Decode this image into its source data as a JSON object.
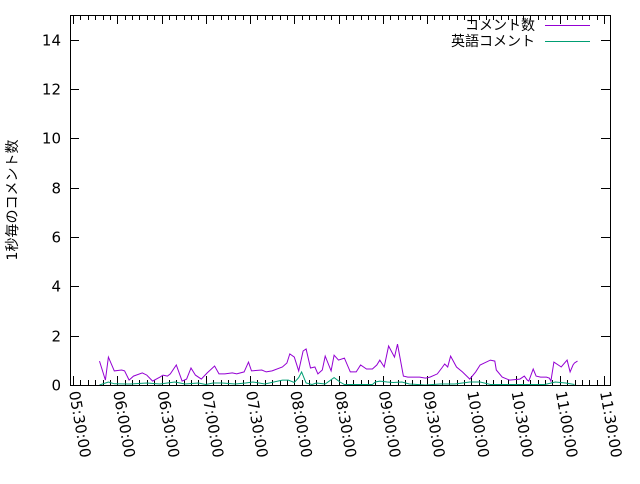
{
  "chart_data": {
    "type": "line",
    "title": "",
    "xlabel": "",
    "ylabel": "1秒毎のコメント数",
    "xlim": [
      "05:30:00",
      "11:30:00"
    ],
    "ylim": [
      0,
      15
    ],
    "x_ticks": [
      "05:30:00",
      "06:00:00",
      "06:30:00",
      "07:00:00",
      "07:30:00",
      "08:00:00",
      "08:30:00",
      "09:00:00",
      "09:30:00",
      "10:00:00",
      "10:30:00",
      "11:00:00",
      "11:30:00"
    ],
    "y_ticks": [
      "0",
      "2",
      "4",
      "6",
      "8",
      "10",
      "12",
      "14"
    ],
    "grid": false,
    "legend_position": "top-right",
    "series": [
      {
        "name": "コメント数",
        "color": "#9400d3",
        "points": [
          [
            "05:48",
            0.97
          ],
          [
            "05:52",
            0.2
          ],
          [
            "05:54",
            1.13
          ],
          [
            "05:58",
            0.57
          ],
          [
            "06:03",
            0.61
          ],
          [
            "06:05",
            0.57
          ],
          [
            "06:08",
            0.2
          ],
          [
            "06:11",
            0.36
          ],
          [
            "06:17",
            0.49
          ],
          [
            "06:20",
            0.4
          ],
          [
            "06:24",
            0.16
          ],
          [
            "06:29",
            0.32
          ],
          [
            "06:31",
            0.4
          ],
          [
            "06:34",
            0.36
          ],
          [
            "06:36",
            0.45
          ],
          [
            "06:40",
            0.81
          ],
          [
            "06:44",
            0.16
          ],
          [
            "06:47",
            0.24
          ],
          [
            "06:50",
            0.69
          ],
          [
            "06:53",
            0.4
          ],
          [
            "06:57",
            0.24
          ],
          [
            "07:01",
            0.49
          ],
          [
            "07:06",
            0.77
          ],
          [
            "07:09",
            0.45
          ],
          [
            "07:13",
            0.45
          ],
          [
            "07:18",
            0.49
          ],
          [
            "07:21",
            0.45
          ],
          [
            "07:26",
            0.53
          ],
          [
            "07:29",
            0.93
          ],
          [
            "07:31",
            0.57
          ],
          [
            "07:38",
            0.61
          ],
          [
            "07:41",
            0.53
          ],
          [
            "07:45",
            0.57
          ],
          [
            "07:52",
            0.73
          ],
          [
            "07:55",
            0.89
          ],
          [
            "07:57",
            1.26
          ],
          [
            "08:00",
            1.13
          ],
          [
            "08:03",
            0.57
          ],
          [
            "08:06",
            1.38
          ],
          [
            "08:08",
            1.46
          ],
          [
            "08:11",
            0.69
          ],
          [
            "08:14",
            0.73
          ],
          [
            "08:16",
            0.45
          ],
          [
            "08:19",
            0.61
          ],
          [
            "08:21",
            1.17
          ],
          [
            "08:25",
            0.57
          ],
          [
            "08:27",
            1.21
          ],
          [
            "08:30",
            1.01
          ],
          [
            "08:34",
            1.09
          ],
          [
            "08:38",
            0.53
          ],
          [
            "08:42",
            0.53
          ],
          [
            "08:45",
            0.81
          ],
          [
            "08:49",
            0.65
          ],
          [
            "08:53",
            0.65
          ],
          [
            "08:56",
            0.81
          ],
          [
            "08:58",
            1.01
          ],
          [
            "09:01",
            0.73
          ],
          [
            "09:04",
            1.58
          ],
          [
            "09:08",
            1.13
          ],
          [
            "09:10",
            1.66
          ],
          [
            "09:14",
            0.36
          ],
          [
            "09:17",
            0.32
          ],
          [
            "09:25",
            0.32
          ],
          [
            "09:29",
            0.28
          ],
          [
            "09:32",
            0.32
          ],
          [
            "09:37",
            0.45
          ],
          [
            "09:40",
            0.69
          ],
          [
            "09:42",
            0.85
          ],
          [
            "09:44",
            0.73
          ],
          [
            "09:46",
            1.17
          ],
          [
            "09:50",
            0.73
          ],
          [
            "09:54",
            0.53
          ],
          [
            "09:59",
            0.24
          ],
          [
            "10:03",
            0.53
          ],
          [
            "10:06",
            0.81
          ],
          [
            "10:13",
            1.01
          ],
          [
            "10:16",
            0.97
          ],
          [
            "10:17",
            0.61
          ],
          [
            "10:21",
            0.32
          ],
          [
            "10:26",
            0.2
          ],
          [
            "10:33",
            0.24
          ],
          [
            "10:36",
            0.36
          ],
          [
            "10:38",
            0.2
          ],
          [
            "10:39",
            0.16
          ],
          [
            "10:42",
            0.65
          ],
          [
            "10:44",
            0.36
          ],
          [
            "10:47",
            0.32
          ],
          [
            "10:51",
            0.32
          ],
          [
            "10:53",
            0.28
          ],
          [
            "10:54",
            0.16
          ],
          [
            "10:56",
            0.93
          ],
          [
            "11:00",
            0.77
          ],
          [
            "11:01",
            0.73
          ],
          [
            "11:05",
            1.01
          ],
          [
            "11:07",
            0.53
          ],
          [
            "11:09",
            0.81
          ],
          [
            "11:10",
            0.89
          ],
          [
            "11:12",
            0.97
          ]
        ]
      },
      {
        "name": "英語コメント",
        "color": "#009e73",
        "points": [
          [
            "05:48",
            0.0
          ],
          [
            "05:54",
            0.12
          ],
          [
            "05:58",
            0.05
          ],
          [
            "06:09",
            0.04
          ],
          [
            "06:20",
            0.08
          ],
          [
            "06:29",
            0.04
          ],
          [
            "06:39",
            0.12
          ],
          [
            "06:46",
            0.04
          ],
          [
            "06:55",
            0.08
          ],
          [
            "07:00",
            0.02
          ],
          [
            "07:05",
            0.08
          ],
          [
            "07:11",
            0.08
          ],
          [
            "07:20",
            0.04
          ],
          [
            "07:27",
            0.08
          ],
          [
            "07:32",
            0.12
          ],
          [
            "07:40",
            0.04
          ],
          [
            "07:52",
            0.2
          ],
          [
            "07:56",
            0.2
          ],
          [
            "08:00",
            0.1
          ],
          [
            "08:03",
            0.3
          ],
          [
            "08:05",
            0.53
          ],
          [
            "08:08",
            0.08
          ],
          [
            "08:12",
            0.02
          ],
          [
            "08:15",
            0.08
          ],
          [
            "08:21",
            0.04
          ],
          [
            "08:27",
            0.3
          ],
          [
            "08:31",
            0.12
          ],
          [
            "08:34",
            0.02
          ],
          [
            "08:53",
            0.02
          ],
          [
            "08:55",
            0.12
          ],
          [
            "08:58",
            0.16
          ],
          [
            "09:03",
            0.12
          ],
          [
            "09:07",
            0.1
          ],
          [
            "09:13",
            0.12
          ],
          [
            "09:18",
            0.04
          ],
          [
            "09:29",
            0.0
          ],
          [
            "09:39",
            0.04
          ],
          [
            "09:49",
            0.04
          ],
          [
            "09:59",
            0.12
          ],
          [
            "10:06",
            0.12
          ],
          [
            "10:13",
            0.02
          ],
          [
            "10:36",
            0.02
          ],
          [
            "10:50",
            0.02
          ],
          [
            "10:57",
            0.12
          ],
          [
            "11:04",
            0.08
          ],
          [
            "11:10",
            0.02
          ]
        ]
      }
    ]
  }
}
